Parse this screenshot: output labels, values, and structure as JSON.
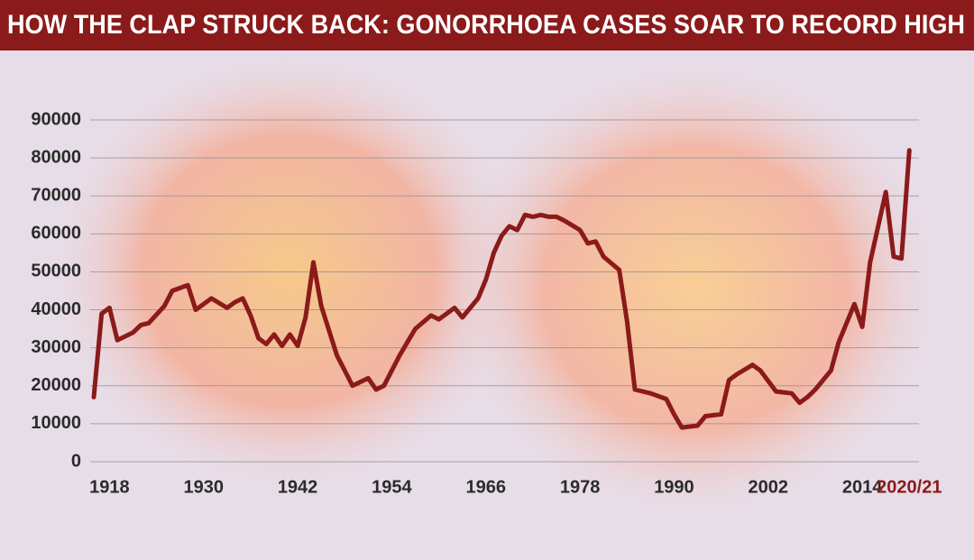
{
  "chart_data": {
    "type": "line",
    "title": "HOW THE CLAP STRUCK BACK: GONORRHOEA CASES SOAR TO RECORD HIGH",
    "color": "#8b1a1a",
    "x": [
      1916,
      1917,
      1918,
      1919,
      1921,
      1922,
      1923,
      1925,
      1926,
      1928,
      1929,
      1931,
      1933,
      1934,
      1935,
      1936,
      1937,
      1938,
      1939,
      1940,
      1941,
      1942,
      1943,
      1944,
      1945,
      1947,
      1949,
      1951,
      1952,
      1953,
      1955,
      1957,
      1959,
      1960,
      1962,
      1963,
      1965,
      1966,
      1967,
      1968,
      1969,
      1970,
      1971,
      1972,
      1973,
      1974,
      1975,
      1976,
      1978,
      1979,
      1980,
      1981,
      1983,
      1984,
      1985,
      1987,
      1989,
      1990,
      1991,
      1993,
      1994,
      1996,
      1997,
      1998,
      2000,
      2001,
      2003,
      2005,
      2006,
      2007,
      2008,
      2010,
      2011,
      2013,
      2014,
      2015,
      2017,
      2018,
      2019,
      2020
    ],
    "values": [
      17000,
      39000,
      40500,
      32000,
      34000,
      36000,
      36500,
      41000,
      45000,
      46500,
      40000,
      43000,
      40500,
      42000,
      43000,
      38500,
      32500,
      31000,
      33500,
      30500,
      33500,
      30500,
      38000,
      52500,
      41000,
      28000,
      20000,
      22000,
      19000,
      20000,
      28000,
      35000,
      38500,
      37500,
      40500,
      38000,
      43000,
      48000,
      55000,
      59500,
      62000,
      61000,
      65000,
      64500,
      65000,
      64500,
      64500,
      63500,
      61000,
      57500,
      58000,
      54000,
      50500,
      37000,
      19000,
      18000,
      16500,
      12500,
      9000,
      9500,
      12000,
      12500,
      21500,
      23000,
      25500,
      24000,
      18500,
      18000,
      15500,
      17000,
      19000,
      24000,
      31500,
      41500,
      35500,
      52500,
      71000,
      54000,
      53500,
      82000
    ],
    "xlim": [
      1916,
      2021
    ],
    "xticks": [
      1918,
      1930,
      1942,
      1954,
      1966,
      1978,
      1990,
      2002,
      2014,
      {
        "value": 2020,
        "label": "2020/21"
      }
    ],
    "ylim": [
      0,
      90000
    ],
    "yticks": [
      0,
      10000,
      20000,
      30000,
      40000,
      50000,
      60000,
      70000,
      80000,
      90000
    ],
    "grid": true
  }
}
